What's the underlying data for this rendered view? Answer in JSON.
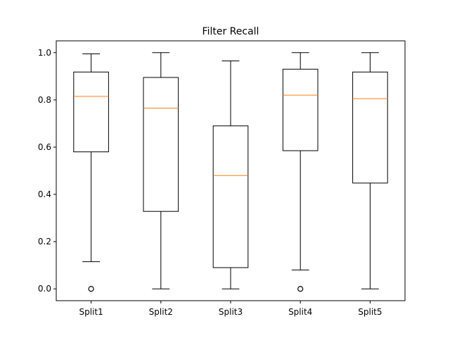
{
  "chart_data": {
    "type": "box",
    "title": "Filter Recall",
    "xlabel": "",
    "ylabel": "",
    "ylim": [
      -0.05,
      1.05
    ],
    "yticks": [
      "0.0",
      "0.2",
      "0.4",
      "0.6",
      "0.8",
      "1.0"
    ],
    "ytick_values": [
      0.0,
      0.2,
      0.4,
      0.6,
      0.8,
      1.0
    ],
    "grid": false,
    "colors": {
      "box": "#000000",
      "median": "#ff7f0e",
      "outlier": "#000000"
    },
    "categories": [
      "Split1",
      "Split2",
      "Split3",
      "Split4",
      "Split5"
    ],
    "boxes": [
      {
        "whisker_low": 0.115,
        "q1": 0.58,
        "median": 0.815,
        "q3": 0.918,
        "whisker_high": 0.995,
        "outliers": [
          0.0
        ]
      },
      {
        "whisker_low": 0.0,
        "q1": 0.328,
        "median": 0.765,
        "q3": 0.895,
        "whisker_high": 1.0,
        "outliers": []
      },
      {
        "whisker_low": 0.0,
        "q1": 0.09,
        "median": 0.48,
        "q3": 0.69,
        "whisker_high": 0.965,
        "outliers": []
      },
      {
        "whisker_low": 0.08,
        "q1": 0.585,
        "median": 0.82,
        "q3": 0.93,
        "whisker_high": 1.0,
        "outliers": [
          0.0
        ]
      },
      {
        "whisker_low": 0.0,
        "q1": 0.448,
        "median": 0.805,
        "q3": 0.918,
        "whisker_high": 1.0,
        "outliers": []
      }
    ]
  }
}
